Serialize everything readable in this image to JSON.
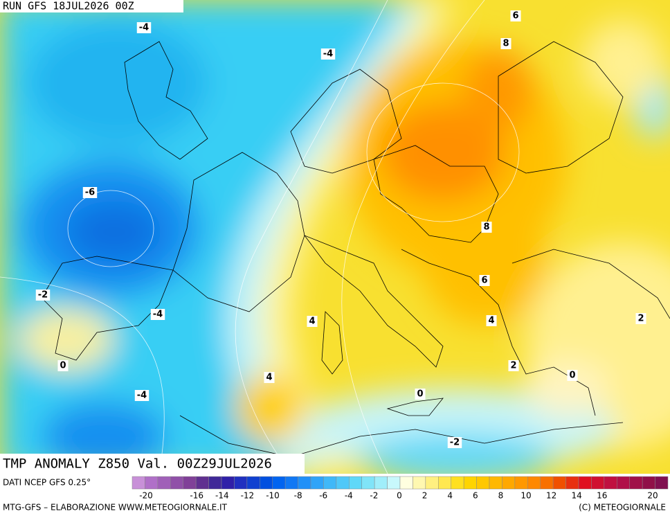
{
  "header": {
    "run": "RUN GFS 18JUL2026 00Z"
  },
  "map": {
    "title": "TMP ANOMALY Z850 Val. 00Z29JUL2026",
    "contour_labels": [
      -4,
      -4,
      6,
      8,
      -6,
      8,
      6,
      -2,
      -4,
      4,
      4,
      2,
      0,
      2,
      4,
      0,
      -4,
      0,
      -2
    ]
  },
  "footer": {
    "source": "DATI NCEP GFS 0.25°",
    "credit": "MTG-GFS – ELABORAZIONE WWW.METEOGIORNALE.IT",
    "copyright": "(C) METEOGIORNALE"
  },
  "colorbar": {
    "colors": [
      "#c890d8",
      "#b070c8",
      "#a060b8",
      "#9050a8",
      "#804098",
      "#603090",
      "#402898",
      "#3020a8",
      "#2030c0",
      "#1040d0",
      "#0050e0",
      "#0064f0",
      "#1078f4",
      "#2090f8",
      "#30a4f8",
      "#40b8f8",
      "#50c8f8",
      "#60d8f8",
      "#80e4f8",
      "#a0eefa",
      "#c8f8fc",
      "#ffffe0",
      "#fff8b0",
      "#fff080",
      "#ffe850",
      "#ffe020",
      "#ffd400",
      "#ffc800",
      "#ffb800",
      "#ffa800",
      "#ff9800",
      "#ff8800",
      "#f87000",
      "#f05000",
      "#e83010",
      "#e01020",
      "#d01030",
      "#c01040",
      "#b01048",
      "#a01048",
      "#901048",
      "#801050"
    ],
    "ticks": [
      -20,
      -16,
      -14,
      -12,
      -10,
      -8,
      -6,
      -4,
      -2,
      0,
      2,
      4,
      6,
      8,
      10,
      12,
      14,
      16,
      20
    ]
  }
}
